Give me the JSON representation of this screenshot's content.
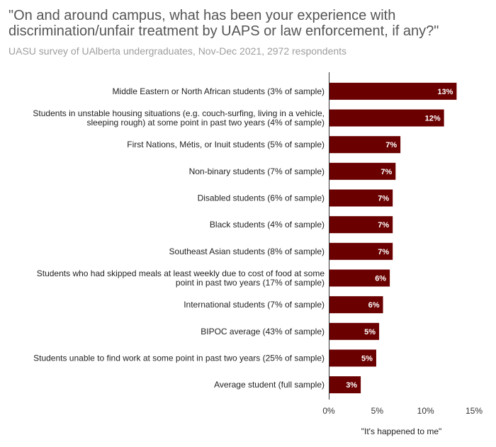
{
  "title": "\"On and around campus, what has been your experience with discrimination/unfair treatment by UAPS or law enforcement, if any?\"",
  "subtitle": "UASU survey of UAlberta undergraduates, Nov-Dec 2021, 2972 respondents",
  "chart_data": {
    "type": "bar",
    "orientation": "horizontal",
    "categories": [
      [
        "Middle Eastern or North African students (3% of sample)"
      ],
      [
        "Students in unstable housing situations (e.g. couch-surfing, living in a vehicle,",
        "sleeping rough) at some point in past two years (4% of sample)"
      ],
      [
        "First Nations, Métis, or Inuit students (5% of sample)"
      ],
      [
        "Non-binary students (7% of sample)"
      ],
      [
        "Disabled students (6% of sample)"
      ],
      [
        "Black students (4% of sample)"
      ],
      [
        "Southeast Asian students (8% of sample)"
      ],
      [
        "Students who had skipped meals at least weekly due to cost of food at some",
        "point in past two years (17% of sample)"
      ],
      [
        "International students (7% of sample)"
      ],
      [
        "BIPOC average (43% of sample)"
      ],
      [
        "Students unable to find work at some point in past two years (25% of sample)"
      ],
      [
        "Average student (full sample)"
      ]
    ],
    "values": [
      13.2,
      11.9,
      7.4,
      6.9,
      6.6,
      6.6,
      6.6,
      6.3,
      5.6,
      5.2,
      4.9,
      3.3
    ],
    "data_labels": [
      "13%",
      "12%",
      "7%",
      "7%",
      "7%",
      "7%",
      "7%",
      "6%",
      "6%",
      "5%",
      "5%",
      "3%"
    ],
    "xlabel": "\"It's happened to me\"",
    "xlim": [
      0,
      15
    ],
    "xticks": [
      "0%",
      "5%",
      "10%",
      "15%"
    ],
    "bar_color": "#6b0000",
    "grid": false,
    "legend": "none"
  }
}
